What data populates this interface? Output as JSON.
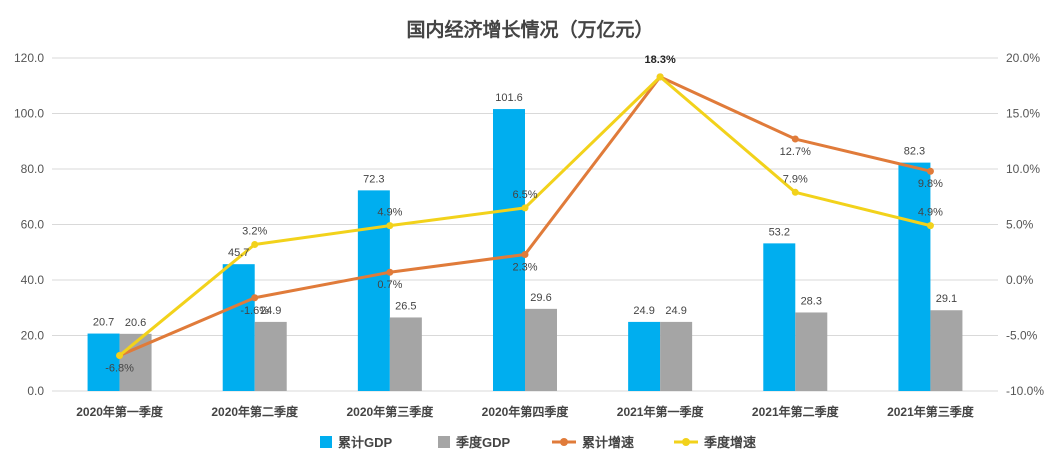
{
  "chart_data": {
    "type": "bar",
    "title": "国内经济增长情况（万亿元）",
    "categories": [
      "2020年第一季度",
      "2020年第二季度",
      "2020年第三季度",
      "2020年第四季度",
      "2021年第一季度",
      "2021年第二季度",
      "2021年第三季度"
    ],
    "series": [
      {
        "name": "累计GDP",
        "type": "bar",
        "axis": "left",
        "color": "#00AEEF",
        "values": [
          20.7,
          45.7,
          72.3,
          101.6,
          24.9,
          53.2,
          82.3
        ],
        "labels": [
          "20.7",
          "45.7",
          "72.3",
          "101.6",
          "24.9",
          "53.2",
          "82.3"
        ]
      },
      {
        "name": "季度GDP",
        "type": "bar",
        "axis": "left",
        "color": "#A5A5A5",
        "values": [
          20.6,
          24.9,
          26.5,
          29.6,
          24.9,
          28.3,
          29.1
        ],
        "labels": [
          "20.6",
          "24.9",
          "26.5",
          "29.6",
          "24.9",
          "28.3",
          "29.1"
        ]
      },
      {
        "name": "累计增速",
        "type": "line",
        "axis": "right",
        "color": "#E07B3A",
        "values": [
          -6.8,
          -1.6,
          0.7,
          2.3,
          18.3,
          12.7,
          9.8
        ],
        "labels": [
          "-6.8%",
          "-1.6%",
          "0.7%",
          "2.3%",
          "18.3%",
          "12.7%",
          "9.8%"
        ]
      },
      {
        "name": "季度增速",
        "type": "line",
        "axis": "right",
        "color": "#F2D21B",
        "values": [
          -6.8,
          3.2,
          4.9,
          6.5,
          18.3,
          7.9,
          4.9
        ],
        "labels": [
          "",
          "3.2%",
          "4.9%",
          "6.5%",
          "",
          "7.9%",
          "4.9%"
        ]
      }
    ],
    "y_left": {
      "min": 0,
      "max": 120,
      "step": 20,
      "ticks": [
        "0.0",
        "20.0",
        "40.0",
        "60.0",
        "80.0",
        "100.0",
        "120.0"
      ]
    },
    "y_right": {
      "min": -10,
      "max": 20,
      "step": 5,
      "ticks": [
        "-10.0%",
        "-5.0%",
        "0.0%",
        "5.0%",
        "10.0%",
        "15.0%",
        "20.0%"
      ]
    },
    "grid": true,
    "legend_position": "bottom"
  }
}
